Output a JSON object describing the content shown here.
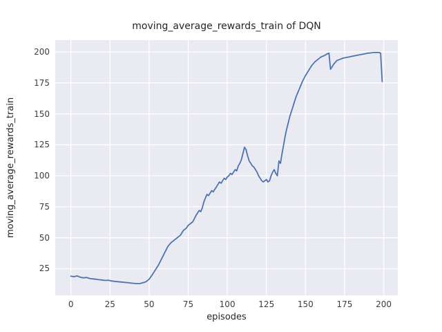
{
  "figure": {
    "title": "moving_average_rewards_train of DQN",
    "xlabel": "episodes",
    "ylabel": "moving_average_rewards_train"
  },
  "chart_data": {
    "type": "line",
    "title": "moving_average_rewards_train of DQN",
    "xlabel": "episodes",
    "ylabel": "moving_average_rewards_train",
    "xlim": [
      -10,
      209
    ],
    "ylim": [
      3.5,
      209.5
    ],
    "xticks": [
      0,
      25,
      50,
      75,
      100,
      125,
      150,
      175,
      200
    ],
    "yticks": [
      25,
      50,
      75,
      100,
      125,
      150,
      175,
      200
    ],
    "grid": true,
    "legend": false,
    "line_color": "#4c72b0",
    "plot_bg": "#eaeaf2",
    "grid_color": "#ffffff",
    "fig_bg": "#ffffff",
    "x": [
      0,
      2,
      4,
      6,
      8,
      10,
      12,
      14,
      16,
      18,
      20,
      22,
      24,
      26,
      28,
      30,
      32,
      34,
      36,
      38,
      40,
      42,
      44,
      46,
      48,
      50,
      52,
      54,
      56,
      58,
      60,
      62,
      64,
      66,
      68,
      70,
      72,
      74,
      75,
      76,
      78,
      80,
      81,
      82,
      83,
      84,
      85,
      86,
      87,
      88,
      89,
      90,
      91,
      92,
      93,
      94,
      95,
      96,
      97,
      98,
      99,
      100,
      101,
      102,
      103,
      104,
      105,
      106,
      107,
      108,
      109,
      110,
      111,
      112,
      113,
      114,
      115,
      116,
      117,
      118,
      119,
      120,
      121,
      122,
      123,
      124,
      125,
      126,
      127,
      128,
      129,
      130,
      131,
      132,
      133,
      134,
      135,
      136,
      137,
      138,
      139,
      140,
      141,
      142,
      143,
      144,
      145,
      146,
      147,
      148,
      150,
      152,
      154,
      156,
      158,
      160,
      162,
      164,
      165,
      166,
      167,
      168,
      170,
      172,
      174,
      176,
      178,
      180,
      182,
      184,
      186,
      188,
      190,
      192,
      194,
      196,
      197,
      198,
      199
    ],
    "values": [
      19,
      18.6,
      19.2,
      18.2,
      17.6,
      17.9,
      17.1,
      16.8,
      16.5,
      16.1,
      15.9,
      15.5,
      15.7,
      15.1,
      14.8,
      14.5,
      14.3,
      14,
      13.8,
      13.5,
      13.2,
      13,
      13,
      13.6,
      14.5,
      16.5,
      20,
      24,
      28,
      33,
      38,
      43,
      46,
      48,
      50,
      52,
      56,
      58,
      60,
      61,
      63,
      68,
      70,
      72,
      71,
      74,
      79,
      82,
      85,
      84,
      86,
      88,
      87,
      89,
      91,
      93,
      95,
      94,
      96,
      98,
      97,
      99,
      100,
      102,
      101,
      103,
      105,
      104,
      108,
      110,
      113,
      118,
      123,
      121,
      116,
      112,
      110,
      108,
      107,
      105,
      103,
      100,
      98,
      96,
      95,
      96,
      97,
      95,
      96,
      100,
      103,
      105,
      102,
      100,
      112,
      110,
      118,
      125,
      132,
      138,
      143,
      148,
      152,
      156,
      160,
      164,
      167,
      170,
      173,
      176,
      181,
      185,
      189,
      192,
      194,
      196,
      197,
      198.5,
      199,
      186,
      188,
      190,
      193,
      194,
      195,
      195.5,
      196,
      196.5,
      197,
      197.5,
      198,
      198.5,
      199,
      199.2,
      199.5,
      199.5,
      199.5,
      199,
      176
    ]
  }
}
